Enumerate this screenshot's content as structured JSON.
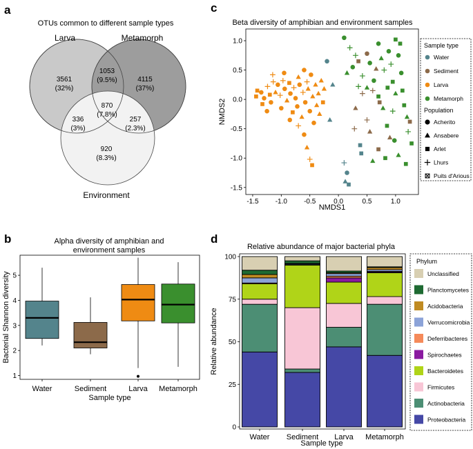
{
  "panels": {
    "a": "a",
    "b": "b",
    "c": "c",
    "d": "d"
  },
  "colors": {
    "water": "#54848c",
    "sediment": "#8c6a4a",
    "larva": "#ef8b13",
    "metamorph": "#3a8f2e",
    "venn_larva": "#c9c9c9",
    "venn_metamorph": "#9d9d9d",
    "venn_environment": "#f2f2f2"
  },
  "chart_data": [
    {
      "id": "a",
      "type": "venn",
      "title": "OTUs common to different sample types",
      "sets": [
        "Larva",
        "Metamorph",
        "Environment"
      ],
      "regions": [
        {
          "sets": [
            "Larva"
          ],
          "count": "3561",
          "pct": "(32%)"
        },
        {
          "sets": [
            "Metamorph"
          ],
          "count": "4115",
          "pct": "(37%)"
        },
        {
          "sets": [
            "Larva",
            "Metamorph"
          ],
          "count": "1053",
          "pct": "(9.5%)"
        },
        {
          "sets": [
            "Larva",
            "Metamorph",
            "Environment"
          ],
          "count": "870",
          "pct": "(7.8%)"
        },
        {
          "sets": [
            "Larva",
            "Environment"
          ],
          "count": "336",
          "pct": "(3%)"
        },
        {
          "sets": [
            "Metamorph",
            "Environment"
          ],
          "count": "257",
          "pct": "(2.3%)"
        },
        {
          "sets": [
            "Environment"
          ],
          "count": "920",
          "pct": "(8.3%)"
        }
      ]
    },
    {
      "id": "b",
      "type": "boxplot",
      "title_line1": "Alpha diversity of amphibian and",
      "title_line2": "environment samples",
      "xlabel": "Sample type",
      "ylabel": "Bacterial Shannon diversity",
      "ylim": [
        0.85,
        5.8
      ],
      "yticks": [
        1,
        2,
        3,
        4,
        5
      ],
      "categories": [
        "Water",
        "Sediment",
        "Larva",
        "Metamorph"
      ],
      "boxes": [
        {
          "name": "Water",
          "whisker_low": 2.2,
          "q1": 2.48,
          "median": 3.3,
          "q3": 3.97,
          "whisker_high": 5.3,
          "outliers": []
        },
        {
          "name": "Sediment",
          "whisker_low": 1.85,
          "q1": 2.1,
          "median": 2.33,
          "q3": 3.12,
          "whisker_high": 4.12,
          "outliers": []
        },
        {
          "name": "Larva",
          "whisker_low": 1.3,
          "q1": 3.18,
          "median": 4.03,
          "q3": 4.63,
          "whisker_high": 5.7,
          "outliers": [
            0.97
          ]
        },
        {
          "name": "Metamorph",
          "whisker_low": 1.35,
          "q1": 3.1,
          "median": 3.83,
          "q3": 4.65,
          "whisker_high": 5.52,
          "outliers": []
        }
      ]
    },
    {
      "id": "c",
      "type": "scatter",
      "title": "Beta diversity of amphibian and environment samples",
      "xlabel": "NMDS1",
      "ylabel": "NMDS2",
      "xlim": [
        -1.62,
        1.4
      ],
      "ylim": [
        -1.62,
        1.2
      ],
      "xticks": [
        -1.5,
        -1.0,
        -0.5,
        0.0,
        0.5,
        1.0
      ],
      "yticks": [
        -1.5,
        -1.0,
        -0.5,
        0.0,
        0.5,
        1.0
      ],
      "legend_sample_title": "Sample type",
      "legend_sample": [
        "Water",
        "Sediment",
        "Larva",
        "Metamorph"
      ],
      "legend_population_title": "Population",
      "legend_population": [
        "Acherito",
        "Ansabere",
        "Arlet",
        "Lhurs",
        "Puits d'Arious"
      ],
      "points": [
        {
          "x": -1.44,
          "y": 0.05,
          "g": "Larva",
          "s": "square"
        },
        {
          "x": -1.42,
          "y": 0.15,
          "g": "Larva",
          "s": "square"
        },
        {
          "x": -1.35,
          "y": 0.12,
          "g": "Larva",
          "s": "circle"
        },
        {
          "x": -1.3,
          "y": 0.02,
          "g": "Larva",
          "s": "circle"
        },
        {
          "x": -1.24,
          "y": 0.22,
          "g": "Larva",
          "s": "plus"
        },
        {
          "x": -1.2,
          "y": 0.08,
          "g": "Larva",
          "s": "square"
        },
        {
          "x": -1.18,
          "y": -0.05,
          "g": "Larva",
          "s": "circle"
        },
        {
          "x": -1.14,
          "y": 0.3,
          "g": "Larva",
          "s": "plus"
        },
        {
          "x": -1.1,
          "y": 0.12,
          "g": "Larva",
          "s": "triangle"
        },
        {
          "x": -1.06,
          "y": 0.25,
          "g": "Larva",
          "s": "circle"
        },
        {
          "x": -1.02,
          "y": 0.07,
          "g": "Larva",
          "s": "plus"
        },
        {
          "x": -1.0,
          "y": -0.15,
          "g": "Larva",
          "s": "circle"
        },
        {
          "x": -0.97,
          "y": 0.32,
          "g": "Larva",
          "s": "plus"
        },
        {
          "x": -0.94,
          "y": 0.18,
          "g": "Larva",
          "s": "circle"
        },
        {
          "x": -0.9,
          "y": -0.02,
          "g": "Larva",
          "s": "triangle"
        },
        {
          "x": -0.86,
          "y": 0.28,
          "g": "Larva",
          "s": "square"
        },
        {
          "x": -0.84,
          "y": 0.1,
          "g": "Larva",
          "s": "circle"
        },
        {
          "x": -0.8,
          "y": -0.22,
          "g": "Larva",
          "s": "square"
        },
        {
          "x": -0.78,
          "y": 0.2,
          "g": "Larva",
          "s": "plus"
        },
        {
          "x": -0.75,
          "y": 0.02,
          "g": "Larva",
          "s": "circle"
        },
        {
          "x": -0.72,
          "y": -0.12,
          "g": "Larva",
          "s": "circle"
        },
        {
          "x": -0.7,
          "y": 0.38,
          "g": "Larva",
          "s": "triangle"
        },
        {
          "x": -0.68,
          "y": 0.25,
          "g": "Larva",
          "s": "circle"
        },
        {
          "x": -0.64,
          "y": -0.3,
          "g": "Larva",
          "s": "triangle"
        },
        {
          "x": -0.62,
          "y": 0.12,
          "g": "Larva",
          "s": "plus"
        },
        {
          "x": -0.6,
          "y": 0.5,
          "g": "Larva",
          "s": "circle"
        },
        {
          "x": -0.58,
          "y": -0.05,
          "g": "Larva",
          "s": "circle"
        },
        {
          "x": -0.55,
          "y": 0.3,
          "g": "Larva",
          "s": "plus"
        },
        {
          "x": -0.53,
          "y": 0.18,
          "g": "Larva",
          "s": "triangle"
        },
        {
          "x": -0.5,
          "y": -0.2,
          "g": "Larva",
          "s": "circle"
        },
        {
          "x": -0.48,
          "y": 0.42,
          "g": "Larva",
          "s": "circle"
        },
        {
          "x": -0.45,
          "y": 0.05,
          "g": "Larva",
          "s": "triangle"
        },
        {
          "x": -0.43,
          "y": -0.4,
          "g": "Larva",
          "s": "circle"
        },
        {
          "x": -0.4,
          "y": 0.25,
          "g": "Larva",
          "s": "triangle"
        },
        {
          "x": -0.38,
          "y": -0.1,
          "g": "Larva",
          "s": "triangle"
        },
        {
          "x": -0.35,
          "y": 0.1,
          "g": "Larva",
          "s": "triangle"
        },
        {
          "x": -0.33,
          "y": -0.25,
          "g": "Larva",
          "s": "triangle"
        },
        {
          "x": -0.3,
          "y": 0.32,
          "g": "Larva",
          "s": "triangle"
        },
        {
          "x": -0.27,
          "y": -0.05,
          "g": "Larva",
          "s": "square"
        },
        {
          "x": -0.25,
          "y": 0.18,
          "g": "Larva",
          "s": "triangle"
        },
        {
          "x": -0.6,
          "y": -0.6,
          "g": "Larva",
          "s": "circle"
        },
        {
          "x": -0.55,
          "y": -0.82,
          "g": "Larva",
          "s": "triangle"
        },
        {
          "x": -0.5,
          "y": -1.02,
          "g": "Larva",
          "s": "plus"
        },
        {
          "x": -0.46,
          "y": -1.12,
          "g": "Larva",
          "s": "square"
        },
        {
          "x": -0.7,
          "y": -0.45,
          "g": "Larva",
          "s": "plus"
        },
        {
          "x": -0.85,
          "y": -0.35,
          "g": "Larva",
          "s": "circle"
        },
        {
          "x": -1.25,
          "y": -0.2,
          "g": "Larva",
          "s": "circle"
        },
        {
          "x": -0.95,
          "y": 0.45,
          "g": "Larva",
          "s": "circle"
        },
        {
          "x": -1.15,
          "y": 0.42,
          "g": "Larva",
          "s": "plus"
        },
        {
          "x": -1.33,
          "y": -0.08,
          "g": "Larva",
          "s": "square"
        },
        {
          "x": -0.2,
          "y": 0.65,
          "g": "Water",
          "s": "circle"
        },
        {
          "x": -0.1,
          "y": 0.25,
          "g": "Water",
          "s": "triangle"
        },
        {
          "x": -0.15,
          "y": -0.35,
          "g": "Water",
          "s": "triangle"
        },
        {
          "x": 0.1,
          "y": -1.08,
          "g": "Water",
          "s": "plus"
        },
        {
          "x": 0.15,
          "y": -1.25,
          "g": "Water",
          "s": "circle"
        },
        {
          "x": 0.12,
          "y": -1.4,
          "g": "Water",
          "s": "triangle"
        },
        {
          "x": 0.18,
          "y": -1.45,
          "g": "Water",
          "s": "square"
        },
        {
          "x": 0.38,
          "y": -0.78,
          "g": "Water",
          "s": "square"
        },
        {
          "x": 0.4,
          "y": -0.92,
          "g": "Water",
          "s": "square"
        },
        {
          "x": 0.35,
          "y": 0.65,
          "g": "Sediment",
          "s": "square"
        },
        {
          "x": 0.5,
          "y": 0.78,
          "g": "Sediment",
          "s": "circle"
        },
        {
          "x": 0.6,
          "y": 0.15,
          "g": "Sediment",
          "s": "plus"
        },
        {
          "x": 0.42,
          "y": 0.1,
          "g": "Sediment",
          "s": "plus"
        },
        {
          "x": 0.3,
          "y": -0.15,
          "g": "Sediment",
          "s": "triangle"
        },
        {
          "x": 0.28,
          "y": -0.5,
          "g": "Sediment",
          "s": "plus"
        },
        {
          "x": 0.5,
          "y": -0.35,
          "g": "Sediment",
          "s": "plus"
        },
        {
          "x": 0.55,
          "y": -0.55,
          "g": "Sediment",
          "s": "triangle"
        },
        {
          "x": 0.7,
          "y": -0.85,
          "g": "Sediment",
          "s": "square"
        },
        {
          "x": 0.72,
          "y": -0.05,
          "g": "Sediment",
          "s": "square"
        },
        {
          "x": 0.66,
          "y": 0.52,
          "g": "Sediment",
          "s": "triangle"
        },
        {
          "x": 0.9,
          "y": -0.65,
          "g": "Sediment",
          "s": "triangle"
        },
        {
          "x": 1.25,
          "y": -0.38,
          "g": "Sediment",
          "s": "square"
        },
        {
          "x": 0.1,
          "y": 1.05,
          "g": "Metamorph",
          "s": "circle"
        },
        {
          "x": 0.2,
          "y": 0.88,
          "g": "Metamorph",
          "s": "plus"
        },
        {
          "x": 0.3,
          "y": 0.75,
          "g": "Metamorph",
          "s": "plus"
        },
        {
          "x": 0.25,
          "y": 0.55,
          "g": "Metamorph",
          "s": "circle"
        },
        {
          "x": 0.15,
          "y": 0.45,
          "g": "Metamorph",
          "s": "triangle"
        },
        {
          "x": 0.42,
          "y": 0.4,
          "g": "Metamorph",
          "s": "plus"
        },
        {
          "x": 0.55,
          "y": 0.62,
          "g": "Metamorph",
          "s": "circle"
        },
        {
          "x": 0.62,
          "y": 0.32,
          "g": "Metamorph",
          "s": "circle"
        },
        {
          "x": 0.7,
          "y": 0.95,
          "g": "Metamorph",
          "s": "circle"
        },
        {
          "x": 0.75,
          "y": 0.7,
          "g": "Metamorph",
          "s": "triangle"
        },
        {
          "x": 0.8,
          "y": 0.5,
          "g": "Metamorph",
          "s": "plus"
        },
        {
          "x": 0.88,
          "y": 0.82,
          "g": "Metamorph",
          "s": "circle"
        },
        {
          "x": 0.92,
          "y": 0.6,
          "g": "Metamorph",
          "s": "plus"
        },
        {
          "x": 0.95,
          "y": 0.3,
          "g": "Metamorph",
          "s": "square"
        },
        {
          "x": 1.0,
          "y": 1.02,
          "g": "Metamorph",
          "s": "square"
        },
        {
          "x": 1.05,
          "y": 0.75,
          "g": "Metamorph",
          "s": "circle"
        },
        {
          "x": 1.1,
          "y": 0.45,
          "g": "Metamorph",
          "s": "circle"
        },
        {
          "x": 1.12,
          "y": 0.15,
          "g": "Metamorph",
          "s": "square"
        },
        {
          "x": 1.15,
          "y": -0.1,
          "g": "Metamorph",
          "s": "square"
        },
        {
          "x": 1.2,
          "y": -0.3,
          "g": "Metamorph",
          "s": "triangle"
        },
        {
          "x": 1.22,
          "y": -0.55,
          "g": "Metamorph",
          "s": "plus"
        },
        {
          "x": 1.28,
          "y": -0.75,
          "g": "Metamorph",
          "s": "square"
        },
        {
          "x": 1.18,
          "y": -1.1,
          "g": "Metamorph",
          "s": "square"
        },
        {
          "x": 1.05,
          "y": -0.95,
          "g": "Metamorph",
          "s": "triangle"
        },
        {
          "x": 0.98,
          "y": -0.7,
          "g": "Metamorph",
          "s": "circle"
        },
        {
          "x": 0.85,
          "y": -0.45,
          "g": "Metamorph",
          "s": "square"
        },
        {
          "x": 0.78,
          "y": -0.15,
          "g": "Metamorph",
          "s": "triangle"
        },
        {
          "x": 0.7,
          "y": 0.05,
          "g": "Metamorph",
          "s": "square"
        },
        {
          "x": 0.6,
          "y": -1.05,
          "g": "Metamorph",
          "s": "triangle"
        },
        {
          "x": 0.82,
          "y": -1.0,
          "g": "Metamorph",
          "s": "square"
        },
        {
          "x": 0.95,
          "y": -0.2,
          "g": "Metamorph",
          "s": "plus"
        },
        {
          "x": 1.0,
          "y": 0.1,
          "g": "Metamorph",
          "s": "triangle"
        },
        {
          "x": 0.5,
          "y": 0.2,
          "g": "Metamorph",
          "s": "triangle"
        },
        {
          "x": 0.35,
          "y": 0.22,
          "g": "Metamorph",
          "s": "plus"
        },
        {
          "x": 0.86,
          "y": 0.2,
          "g": "Metamorph",
          "s": "square"
        },
        {
          "x": 1.08,
          "y": 0.95,
          "g": "Metamorph",
          "s": "square"
        }
      ]
    },
    {
      "id": "d",
      "type": "stacked_bar",
      "title": "Relative abundance of major bacterial phyla",
      "xlabel": "Sample type",
      "ylabel": "Relative abundance",
      "ylim": [
        0,
        100
      ],
      "yticks": [
        0,
        25,
        50,
        75,
        100
      ],
      "categories": [
        "Water",
        "Sediment",
        "Larva",
        "Metamorph"
      ],
      "legend_title": "Phylum",
      "legend_order": [
        "Unclassified",
        "Planctomycetes",
        "Acidobacteria",
        "Verrucomicrobia",
        "Deferribacteres",
        "Spirochaetes",
        "Bacteroidetes",
        "Firmicutes",
        "Actinobacteria",
        "Proteobacteria"
      ],
      "series": [
        {
          "name": "Proteobacteria",
          "color": "#4548a6",
          "values": [
            44,
            32,
            47,
            42
          ]
        },
        {
          "name": "Actinobacteria",
          "color": "#4c8e74",
          "values": [
            28,
            2,
            11.5,
            30
          ]
        },
        {
          "name": "Firmicutes",
          "color": "#f8c6d6",
          "values": [
            3,
            36,
            14,
            4.5
          ]
        },
        {
          "name": "Bacteroidetes",
          "color": "#b0d418",
          "values": [
            9,
            25,
            12.5,
            14
          ]
        },
        {
          "name": "Spirochaetes",
          "color": "#8a1aa0",
          "values": [
            0,
            0.3,
            2.5,
            0.5
          ]
        },
        {
          "name": "Deferribacteres",
          "color": "#f58a5a",
          "values": [
            0.5,
            0,
            1,
            0.3
          ]
        },
        {
          "name": "Verrucomicrobia",
          "color": "#8ca3d8",
          "values": [
            3,
            0.5,
            1.5,
            1
          ]
        },
        {
          "name": "Acidobacteria",
          "color": "#c08b22",
          "values": [
            2,
            0.2,
            0.5,
            1.2
          ]
        },
        {
          "name": "Planctomycetes",
          "color": "#1e6a32",
          "values": [
            2.5,
            1.5,
            1,
            0.5
          ]
        },
        {
          "name": "Unclassified",
          "color": "#d8cfb2",
          "values": [
            8,
            2.5,
            8.5,
            6
          ]
        }
      ]
    }
  ]
}
